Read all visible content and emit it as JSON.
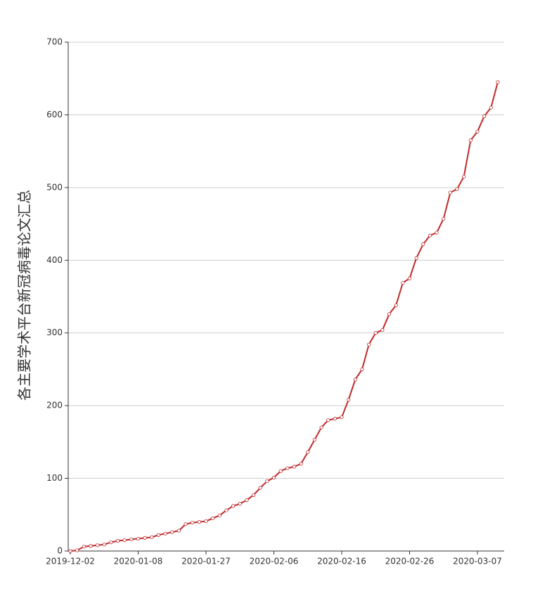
{
  "chart_data": {
    "type": "line",
    "y_label": "各主要学术平台新冠病毒论文汇总",
    "categories": [
      "2019-12-02",
      null,
      null,
      null,
      null,
      null,
      null,
      null,
      null,
      null,
      "2020-01-08",
      null,
      null,
      null,
      null,
      null,
      null,
      null,
      null,
      null,
      "2020-01-27",
      null,
      null,
      null,
      null,
      null,
      null,
      null,
      null,
      null,
      "2020-02-06",
      null,
      null,
      null,
      null,
      null,
      null,
      null,
      null,
      null,
      "2020-02-16",
      null,
      null,
      null,
      null,
      null,
      null,
      null,
      null,
      null,
      "2020-02-26",
      null,
      null,
      null,
      null,
      null,
      null,
      null,
      null,
      null,
      "2020-03-07",
      null,
      null,
      null
    ],
    "series": [
      {
        "color": "#c0292b",
        "values": [
          0,
          1,
          6,
          7,
          8,
          9,
          12,
          14,
          15,
          16,
          17,
          18,
          19,
          22,
          24,
          26,
          28,
          37,
          39,
          40,
          41,
          45,
          49,
          56,
          62,
          65,
          70,
          77,
          87,
          96,
          101,
          110,
          114,
          116,
          120,
          136,
          153,
          170,
          180,
          182,
          184,
          208,
          236,
          250,
          284,
          300,
          304,
          326,
          338,
          369,
          375,
          403,
          422,
          434,
          438,
          457,
          493,
          498,
          515,
          565,
          577,
          598,
          610,
          645
        ]
      }
    ],
    "ylim": [
      0,
      700
    ],
    "yticks": [
      0,
      100,
      200,
      300,
      400,
      500,
      600,
      700
    ],
    "grid": true
  }
}
